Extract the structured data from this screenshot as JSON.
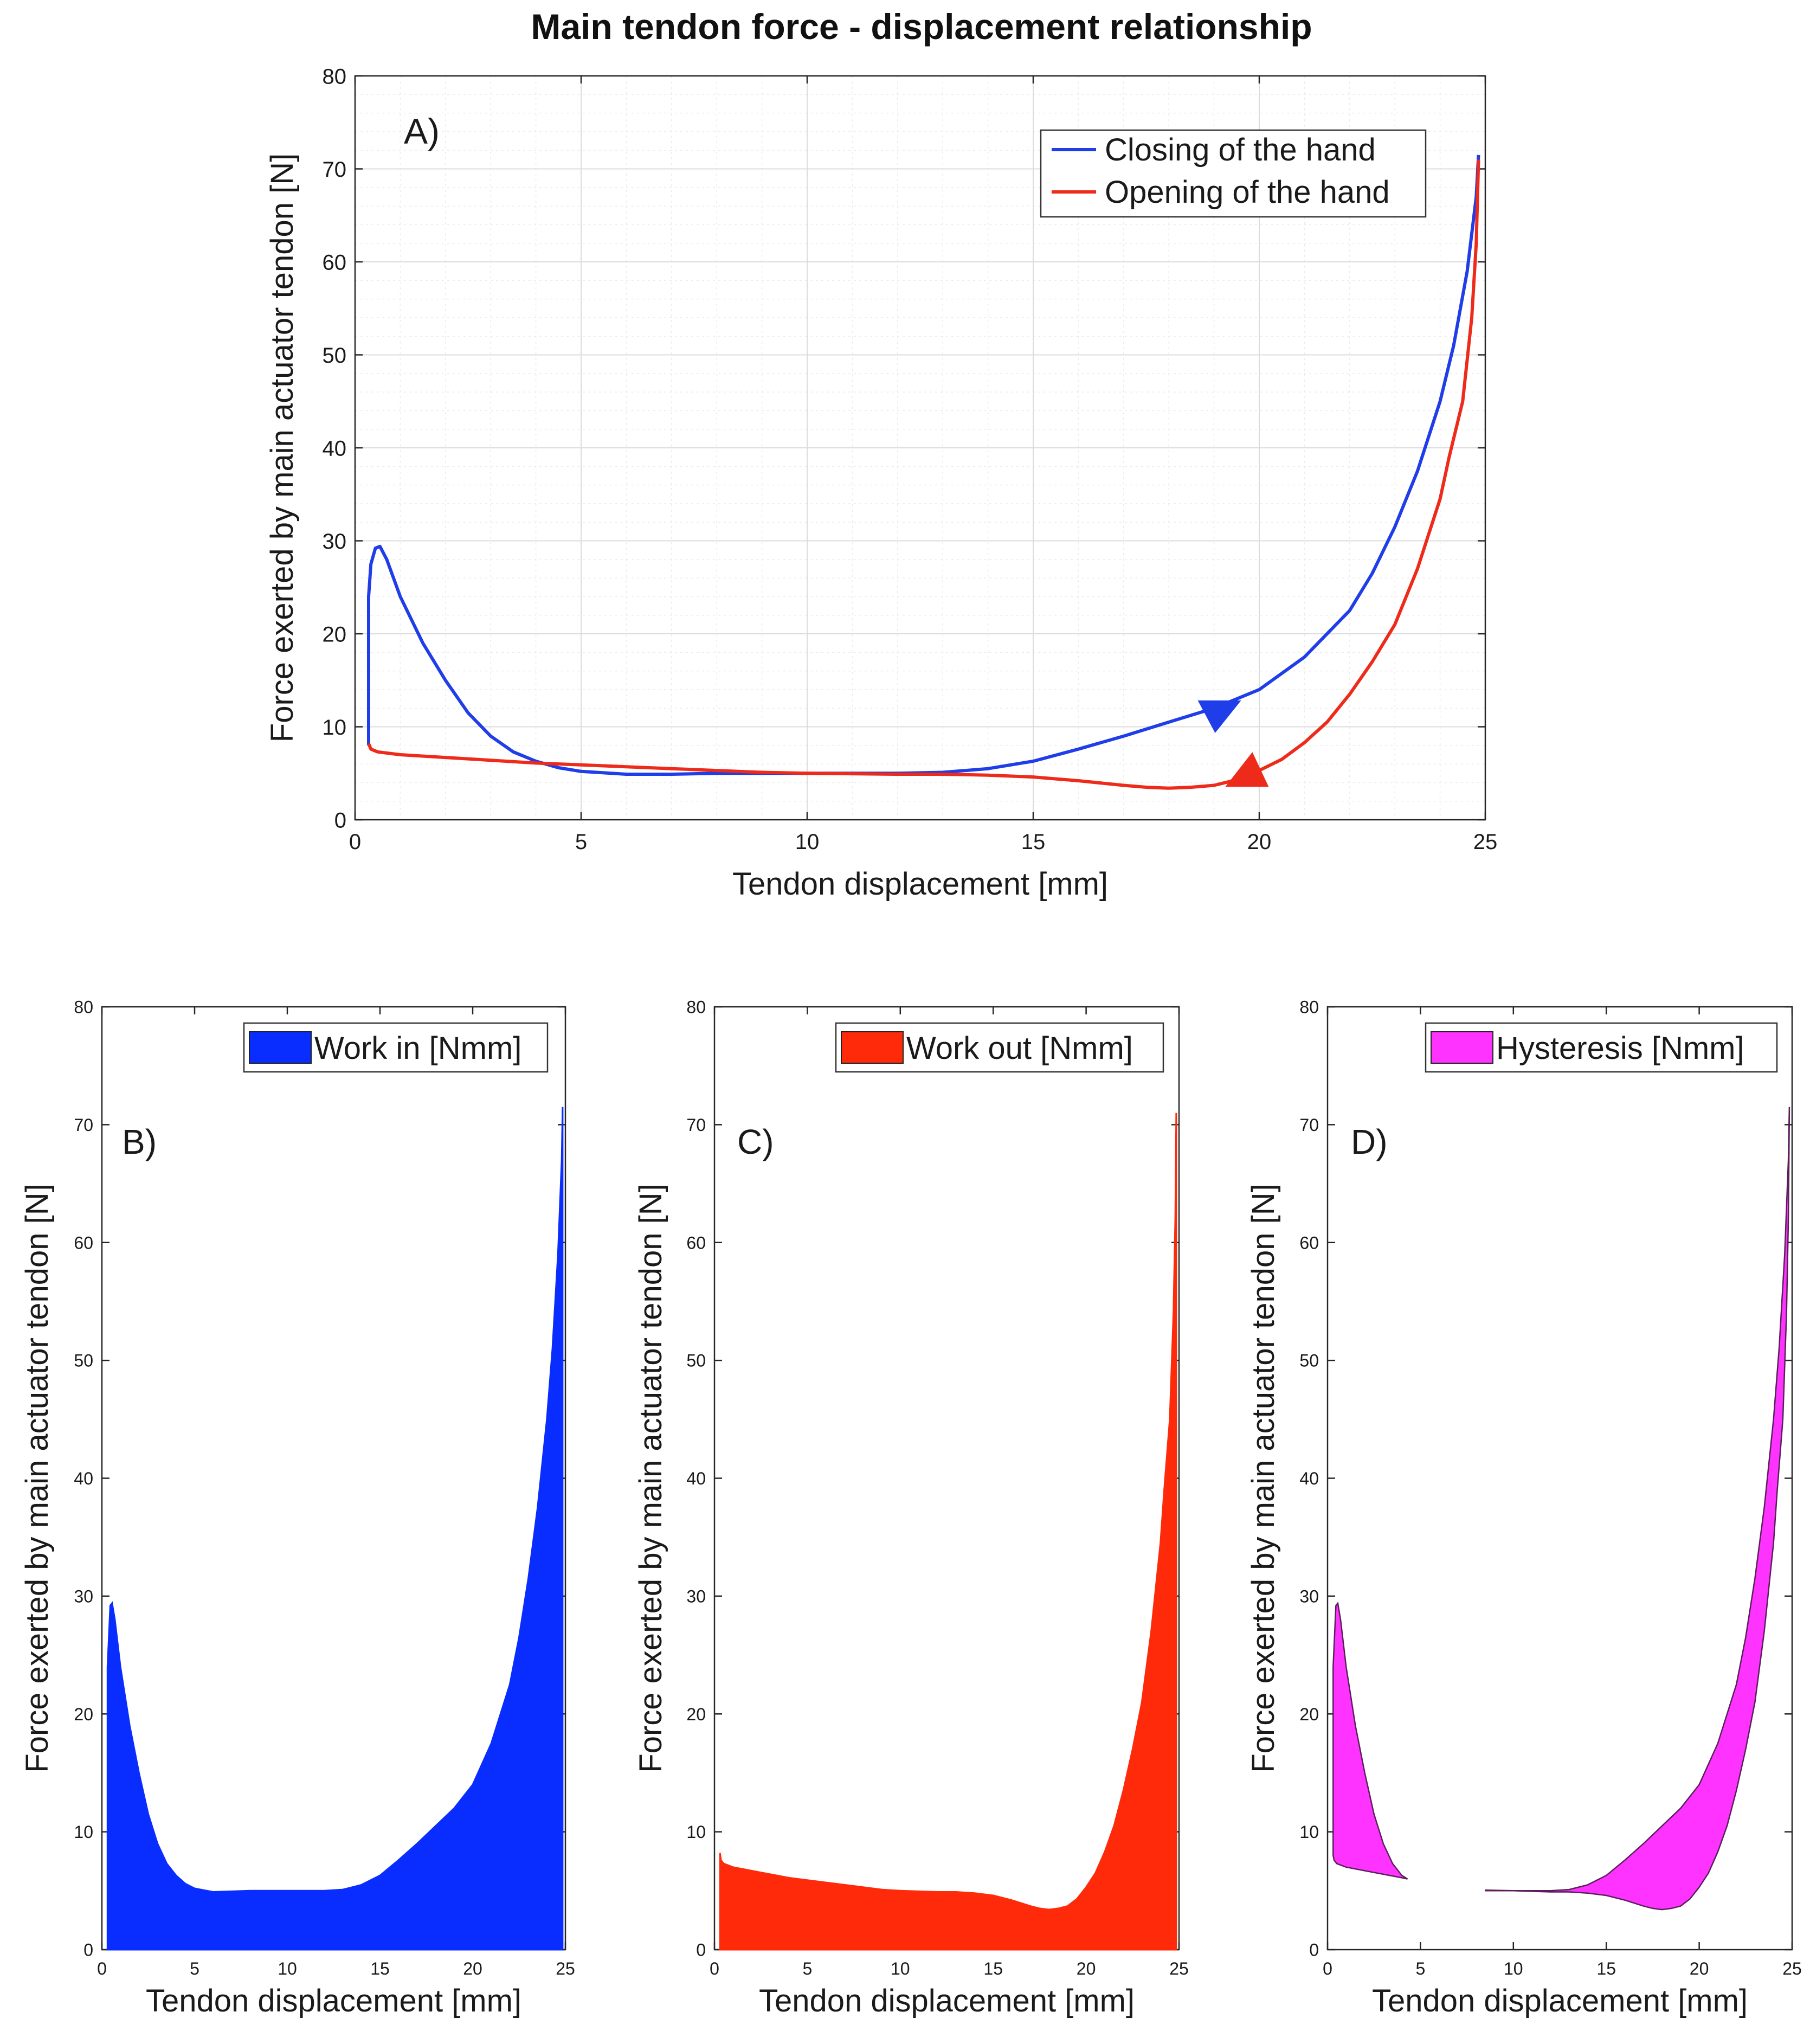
{
  "figure_title": "Main tendon force - displacement relationship",
  "colors": {
    "closing": "#1f3de8",
    "opening": "#ee2a1a",
    "work_in": "#0a2dff",
    "work_out": "#ff2a0a",
    "hysteresis": "#ff33ff"
  },
  "chart_data": [
    {
      "id": "A",
      "type": "line",
      "panel_label": "A)",
      "title": "Main tendon force - displacement relationship",
      "xlabel": "Tendon displacement [mm]",
      "ylabel": "Force exerted by main actuator tendon [N]",
      "xlim": [
        0,
        25
      ],
      "ylim": [
        0,
        80
      ],
      "xticks": [
        0,
        5,
        10,
        15,
        20,
        25
      ],
      "yticks": [
        0,
        10,
        20,
        30,
        40,
        50,
        60,
        70,
        80
      ],
      "grid": true,
      "legend_position": "top-right",
      "series": [
        {
          "name": "Closing of the hand",
          "color": "#1f3de8",
          "x": [
            0.3,
            0.3,
            0.35,
            0.45,
            0.55,
            0.7,
            1.0,
            1.5,
            2.0,
            2.5,
            3.0,
            3.5,
            4.0,
            4.5,
            5.0,
            6.0,
            7.0,
            8.0,
            9.0,
            10.0,
            11.0,
            12.0,
            13.0,
            14.0,
            15.0,
            16.0,
            17.0,
            18.0,
            19.0,
            20.0,
            21.0,
            22.0,
            22.5,
            23.0,
            23.5,
            24.0,
            24.3,
            24.6,
            24.8,
            24.85
          ],
          "y": [
            8.0,
            24.0,
            27.5,
            29.2,
            29.4,
            28.0,
            24.0,
            19.0,
            15.0,
            11.5,
            9.0,
            7.3,
            6.3,
            5.6,
            5.2,
            4.9,
            4.9,
            5.0,
            5.0,
            5.0,
            5.0,
            5.0,
            5.1,
            5.5,
            6.3,
            7.6,
            9.0,
            10.5,
            12.0,
            14.0,
            17.5,
            22.5,
            26.5,
            31.5,
            37.5,
            45.0,
            51.0,
            59.0,
            67.0,
            71.5
          ]
        },
        {
          "name": "Opening of the hand",
          "color": "#ee2a1a",
          "x": [
            24.85,
            24.8,
            24.7,
            24.5,
            24.2,
            24.0,
            23.5,
            23.0,
            22.5,
            22.0,
            21.5,
            21.0,
            20.5,
            20.0,
            19.5,
            19.0,
            18.5,
            18.0,
            17.5,
            17.0,
            16.0,
            15.0,
            14.0,
            13.0,
            12.0,
            11.0,
            10.0,
            9.0,
            8.0,
            7.0,
            6.0,
            5.0,
            4.0,
            3.0,
            2.0,
            1.0,
            0.5,
            0.35,
            0.3
          ],
          "y": [
            71.0,
            62.0,
            54.0,
            45.0,
            39.0,
            34.5,
            27.0,
            21.0,
            17.0,
            13.5,
            10.5,
            8.3,
            6.5,
            5.3,
            4.3,
            3.7,
            3.5,
            3.4,
            3.5,
            3.7,
            4.2,
            4.6,
            4.8,
            4.9,
            4.9,
            4.95,
            5.0,
            5.1,
            5.3,
            5.5,
            5.7,
            5.9,
            6.1,
            6.4,
            6.7,
            7.0,
            7.3,
            7.6,
            8.2
          ]
        }
      ],
      "direction_markers": [
        {
          "series": "Closing of the hand",
          "x": 19.0,
          "y": 11.2
        },
        {
          "series": "Opening of the hand",
          "x": 19.8,
          "y": 5.3
        }
      ]
    },
    {
      "id": "B",
      "type": "area",
      "panel_label": "B)",
      "legend": "Work in [Nmm]",
      "color": "#0a2dff",
      "xlabel": "Tendon displacement [mm]",
      "ylabel": "Force exerted by main actuator tendon [N]",
      "xlim": [
        0,
        25
      ],
      "ylim": [
        0,
        80
      ],
      "xticks": [
        0,
        5,
        10,
        15,
        20,
        25
      ],
      "yticks": [
        0,
        10,
        20,
        30,
        40,
        50,
        60,
        70,
        80
      ],
      "legend_position": "top-right",
      "upper_x": [
        0.3,
        0.3,
        0.45,
        0.55,
        0.7,
        1.0,
        1.5,
        2.0,
        2.5,
        3.0,
        3.5,
        4.0,
        4.5,
        5.0,
        6.0,
        8.0,
        10.0,
        12.0,
        13.0,
        14.0,
        15.0,
        16.0,
        17.0,
        18.0,
        19.0,
        20.0,
        21.0,
        22.0,
        22.5,
        23.0,
        23.5,
        24.0,
        24.3,
        24.6,
        24.8,
        24.85
      ],
      "upper_y": [
        8.0,
        24.0,
        29.2,
        29.4,
        28.0,
        24.0,
        19.0,
        15.0,
        11.5,
        9.0,
        7.3,
        6.3,
        5.6,
        5.2,
        4.9,
        5.0,
        5.0,
        5.0,
        5.1,
        5.5,
        6.3,
        7.6,
        9.0,
        10.5,
        12.0,
        14.0,
        17.5,
        22.5,
        26.5,
        31.5,
        37.5,
        45.0,
        51.0,
        59.0,
        67.0,
        71.5
      ]
    },
    {
      "id": "C",
      "type": "area",
      "panel_label": "C)",
      "legend": "Work out [Nmm]",
      "color": "#ff2a0a",
      "xlabel": "Tendon displacement [mm]",
      "ylabel": "Force exerted by main actuator tendon [N]",
      "xlim": [
        0,
        25
      ],
      "ylim": [
        0,
        80
      ],
      "xticks": [
        0,
        5,
        10,
        15,
        20,
        25
      ],
      "yticks": [
        0,
        10,
        20,
        30,
        40,
        50,
        60,
        70,
        80
      ],
      "legend_position": "top-right",
      "upper_x": [
        0.3,
        0.35,
        0.5,
        1.0,
        2.0,
        3.0,
        4.0,
        5.0,
        6.0,
        7.0,
        8.0,
        9.0,
        10.0,
        11.0,
        12.0,
        13.0,
        14.0,
        15.0,
        16.0,
        17.0,
        17.5,
        18.0,
        18.5,
        19.0,
        19.5,
        20.0,
        20.5,
        21.0,
        21.5,
        22.0,
        22.5,
        23.0,
        23.5,
        24.0,
        24.2,
        24.5,
        24.7,
        24.8,
        24.85
      ],
      "upper_y": [
        8.2,
        7.6,
        7.3,
        7.0,
        6.7,
        6.4,
        6.1,
        5.9,
        5.7,
        5.5,
        5.3,
        5.1,
        5.0,
        4.95,
        4.9,
        4.9,
        4.8,
        4.6,
        4.2,
        3.7,
        3.5,
        3.4,
        3.5,
        3.7,
        4.3,
        5.3,
        6.5,
        8.3,
        10.5,
        13.5,
        17.0,
        21.0,
        27.0,
        34.5,
        39.0,
        45.0,
        54.0,
        62.0,
        71.0
      ]
    },
    {
      "id": "D",
      "type": "area",
      "panel_label": "D)",
      "legend": "Hysteresis [Nmm]",
      "color": "#ff33ff",
      "xlabel": "Tendon displacement [mm]",
      "ylabel": "Force exerted by main actuator tendon [N]",
      "xlim": [
        0,
        25
      ],
      "ylim": [
        0,
        80
      ],
      "xticks": [
        0,
        5,
        10,
        15,
        20,
        25
      ],
      "yticks": [
        0,
        10,
        20,
        30,
        40,
        50,
        60,
        70,
        80
      ],
      "legend_position": "top-right",
      "regions": [
        {
          "x": [
            0.3,
            0.3,
            0.45,
            0.55,
            0.7,
            1.0,
            1.5,
            2.0,
            2.5,
            3.0,
            3.5,
            4.0,
            4.3,
            4.3,
            4.0,
            3.0,
            2.0,
            1.0,
            0.5,
            0.35
          ],
          "y": [
            8.0,
            24.0,
            29.2,
            29.4,
            28.0,
            24.0,
            19.0,
            15.0,
            11.5,
            9.0,
            7.3,
            6.3,
            6.0,
            6.0,
            6.1,
            6.4,
            6.7,
            7.0,
            7.3,
            7.6
          ]
        },
        {
          "x": [
            8.5,
            10.0,
            12.0,
            13.0,
            14.0,
            15.0,
            16.0,
            17.0,
            18.0,
            19.0,
            20.0,
            21.0,
            22.0,
            22.5,
            23.0,
            23.5,
            24.0,
            24.3,
            24.6,
            24.8,
            24.85,
            24.85,
            24.8,
            24.7,
            24.5,
            24.2,
            24.0,
            23.5,
            23.0,
            22.5,
            22.0,
            21.5,
            21.0,
            20.5,
            20.0,
            19.5,
            19.0,
            18.5,
            18.0,
            17.5,
            17.0,
            16.0,
            15.0,
            14.0,
            13.0,
            12.0,
            10.0,
            8.5
          ],
          "y": [
            5.0,
            5.0,
            5.0,
            5.1,
            5.5,
            6.3,
            7.6,
            9.0,
            10.5,
            12.0,
            14.0,
            17.5,
            22.5,
            26.5,
            31.5,
            37.5,
            45.0,
            51.0,
            59.0,
            67.0,
            71.5,
            71.0,
            62.0,
            54.0,
            45.0,
            39.0,
            34.5,
            27.0,
            21.0,
            17.0,
            13.5,
            10.5,
            8.3,
            6.5,
            5.3,
            4.3,
            3.7,
            3.5,
            3.4,
            3.5,
            3.7,
            4.2,
            4.6,
            4.8,
            4.9,
            4.9,
            5.0,
            5.05
          ]
        }
      ]
    }
  ]
}
